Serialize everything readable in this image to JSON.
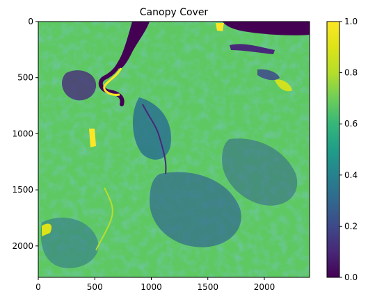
{
  "chart_data": {
    "type": "heatmap",
    "title": "Canopy Cover",
    "xlabel": "",
    "ylabel": "",
    "colormap": "viridis",
    "xlim": [
      0,
      2400
    ],
    "ylim": [
      2280,
      0
    ],
    "x_ticks": [
      0,
      500,
      1000,
      1500,
      2000
    ],
    "y_ticks": [
      0,
      500,
      1000,
      1500,
      2000
    ],
    "colorbar": {
      "range": [
        0.0,
        1.0
      ],
      "ticks": [
        "0.0",
        "0.2",
        "0.4",
        "0.6",
        "0.8",
        "1.0"
      ]
    },
    "grid": false,
    "dominant_values": {
      "background": 0.72,
      "low_regions": 0.35,
      "water": 0.0,
      "bright_edges": 1.0
    }
  }
}
